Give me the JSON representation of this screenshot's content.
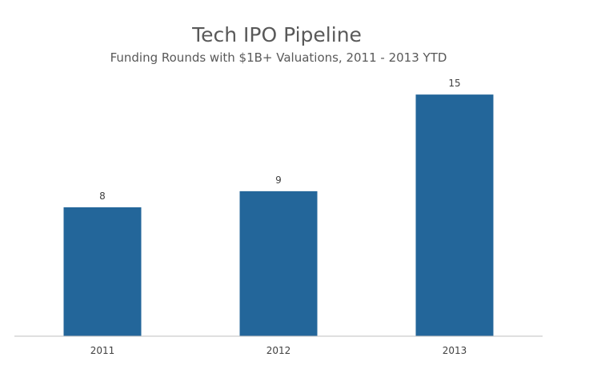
{
  "chart_data": {
    "type": "bar",
    "title": "Tech IPO Pipeline",
    "subtitle": "Funding Rounds with $1B+ Valuations,  2011 - 2013 YTD",
    "categories": [
      "2011",
      "2012",
      "2013"
    ],
    "values": [
      8,
      9,
      15
    ],
    "data_labels": [
      "8",
      "9",
      "15"
    ],
    "xlabel": "",
    "ylabel": "",
    "ylim": [
      0,
      16
    ],
    "grid": false,
    "legend": "none",
    "bar_color": "#23669a",
    "axis_color": "#bfbfbf",
    "text_color": "#595959"
  }
}
